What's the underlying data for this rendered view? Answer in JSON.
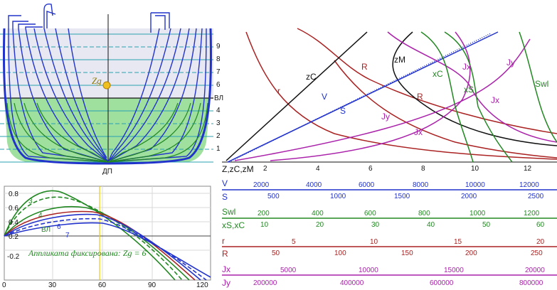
{
  "body_plan": {
    "waterline_numbers": [
      "1",
      "2",
      "3",
      "4",
      "ВЛ",
      "6",
      "7",
      "8",
      "9"
    ],
    "zg_label": "Zg",
    "centerline_label": "ДП",
    "colors": {
      "frame_lines": "#2233cc",
      "hull_fill": "#9fe09f",
      "upper_fill": "#e8e8f2",
      "grid": "#2aa0b0",
      "zg_marker": "#f0c020"
    }
  },
  "stability_diagram": {
    "y_ticks": [
      "0.8",
      "0.6",
      "0.4",
      "0.2",
      "-0.2"
    ],
    "x_ticks": [
      "0",
      "30",
      "60",
      "90",
      "120"
    ],
    "curve_labels": [
      "3",
      "4",
      "ВЛ",
      "6",
      "7"
    ],
    "caption": "Аппликата фиксирована: Zg = 6"
  },
  "curves_panel": {
    "labels": [
      {
        "text": "r",
        "color": "#aa2222"
      },
      {
        "text": "zC",
        "color": "#111111"
      },
      {
        "text": "V",
        "color": "#2233cc"
      },
      {
        "text": "S",
        "color": "#2233cc"
      },
      {
        "text": "R",
        "color": "#aa2222"
      },
      {
        "text": "zM",
        "color": "#111111"
      },
      {
        "text": "R",
        "color": "#aa2222"
      },
      {
        "text": "Jy",
        "color": "#aa22aa"
      },
      {
        "text": "Jx",
        "color": "#aa22aa"
      },
      {
        "text": "xC",
        "color": "#228822"
      },
      {
        "text": "xS",
        "color": "#228822"
      },
      {
        "text": "Jx",
        "color": "#aa22aa"
      },
      {
        "text": "Jy",
        "color": "#aa22aa"
      },
      {
        "text": "Swl",
        "color": "#228822"
      }
    ]
  },
  "scales": [
    {
      "name": "Z,zC,zM",
      "color": "#111111",
      "ticks": [
        "2",
        "4",
        "6",
        "8",
        "10",
        "12"
      ]
    },
    {
      "name": "V",
      "color": "#2233cc",
      "ticks": [
        "2000",
        "4000",
        "6000",
        "8000",
        "10000",
        "12000"
      ]
    },
    {
      "name": "S",
      "color": "#2233cc",
      "ticks": [
        "500",
        "1000",
        "1500",
        "2000",
        "2500"
      ]
    },
    {
      "name": "Swl",
      "color": "#228822",
      "ticks": [
        "200",
        "400",
        "600",
        "800",
        "1000",
        "1200"
      ]
    },
    {
      "name": "xS,xC",
      "color": "#228822",
      "ticks": [
        "10",
        "20",
        "30",
        "40",
        "50",
        "60"
      ]
    },
    {
      "name": "r",
      "color": "#aa2222",
      "ticks": [
        "5",
        "10",
        "15",
        "20"
      ]
    },
    {
      "name": "R",
      "color": "#aa2222",
      "ticks": [
        "50",
        "100",
        "150",
        "200",
        "250"
      ]
    },
    {
      "name": "Jx",
      "color": "#aa22aa",
      "ticks": [
        "5000",
        "10000",
        "15000",
        "20000"
      ]
    },
    {
      "name": "Jy",
      "color": "#aa22aa",
      "ticks": [
        "200000",
        "400000",
        "600000",
        "800000"
      ]
    }
  ]
}
